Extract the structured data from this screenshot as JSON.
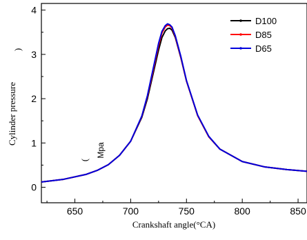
{
  "chart_data": {
    "type": "line",
    "xlabel": "Crankshaft angle(°CA)",
    "ylabel": "Cylinder pressure",
    "ylabel_paren_open": "(",
    "ylabel_paren_close": ")",
    "yunit": "Mpa",
    "xlim": [
      620,
      858
    ],
    "ylim": [
      -0.35,
      4.15
    ],
    "xticks": [
      650,
      700,
      750,
      800,
      850
    ],
    "yticks": [
      0,
      1,
      2,
      3,
      4
    ],
    "legend_position": "top-right",
    "series": [
      {
        "name": "D100",
        "color": "#000000",
        "x": [
          620,
          640,
          660,
          670,
          680,
          690,
          700,
          710,
          715,
          720,
          725,
          728,
          731,
          733,
          735,
          737,
          740,
          745,
          750,
          760,
          770,
          780,
          800,
          820,
          840,
          858
        ],
        "values": [
          0.12,
          0.18,
          0.29,
          0.38,
          0.51,
          0.72,
          1.04,
          1.58,
          2.0,
          2.55,
          3.1,
          3.38,
          3.53,
          3.58,
          3.59,
          3.55,
          3.38,
          2.92,
          2.4,
          1.62,
          1.14,
          0.86,
          0.58,
          0.46,
          0.4,
          0.36
        ]
      },
      {
        "name": "D85",
        "color": "#ff0000",
        "x": [
          620,
          640,
          660,
          670,
          680,
          690,
          700,
          710,
          715,
          720,
          725,
          728,
          731,
          733,
          735,
          737,
          740,
          745,
          750,
          760,
          770,
          780,
          800,
          820,
          840,
          858
        ],
        "values": [
          0.12,
          0.18,
          0.29,
          0.38,
          0.51,
          0.72,
          1.04,
          1.6,
          2.05,
          2.62,
          3.2,
          3.48,
          3.62,
          3.66,
          3.65,
          3.6,
          3.4,
          2.93,
          2.4,
          1.62,
          1.14,
          0.86,
          0.58,
          0.46,
          0.4,
          0.36
        ]
      },
      {
        "name": "D65",
        "color": "#0000dd",
        "x": [
          620,
          640,
          660,
          670,
          680,
          690,
          700,
          710,
          715,
          720,
          725,
          728,
          731,
          733,
          735,
          737,
          740,
          745,
          750,
          760,
          770,
          780,
          800,
          820,
          840,
          858
        ],
        "values": [
          0.12,
          0.18,
          0.29,
          0.38,
          0.51,
          0.72,
          1.04,
          1.61,
          2.07,
          2.66,
          3.25,
          3.52,
          3.65,
          3.69,
          3.67,
          3.62,
          3.42,
          2.95,
          2.41,
          1.63,
          1.15,
          0.86,
          0.58,
          0.46,
          0.4,
          0.36
        ]
      }
    ]
  }
}
